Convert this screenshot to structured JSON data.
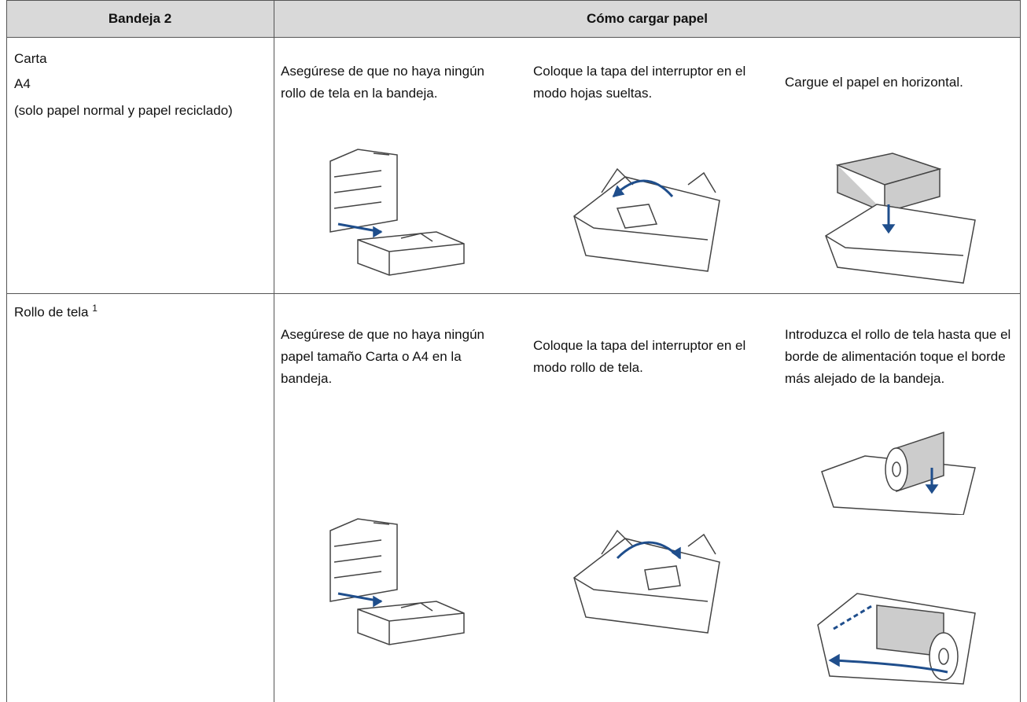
{
  "table": {
    "header": [
      "Bandeja 2",
      "Cómo cargar papel"
    ],
    "rows": [
      {
        "label": [
          "Carta",
          "A4",
          "(solo papel normal y papel reciclado)"
        ],
        "steps": [
          "Asegúrese de que no haya ningún rollo de tela en la bandeja.",
          "Coloque la tapa del interruptor en el modo hojas sueltas.",
          "Cargue el papel en horizontal."
        ]
      },
      {
        "label": [
          "Rollo de tela"
        ],
        "footnote_ref": "1",
        "steps": [
          "Asegúrese de que no haya ningún papel tamaño Carta o A4 en la bandeja.",
          "Coloque la tapa del interruptor en el modo rollo de tela.",
          "Introduzca el rollo de tela hasta que el borde de alimentación toque el borde más alejado de la bandeja."
        ]
      }
    ]
  }
}
